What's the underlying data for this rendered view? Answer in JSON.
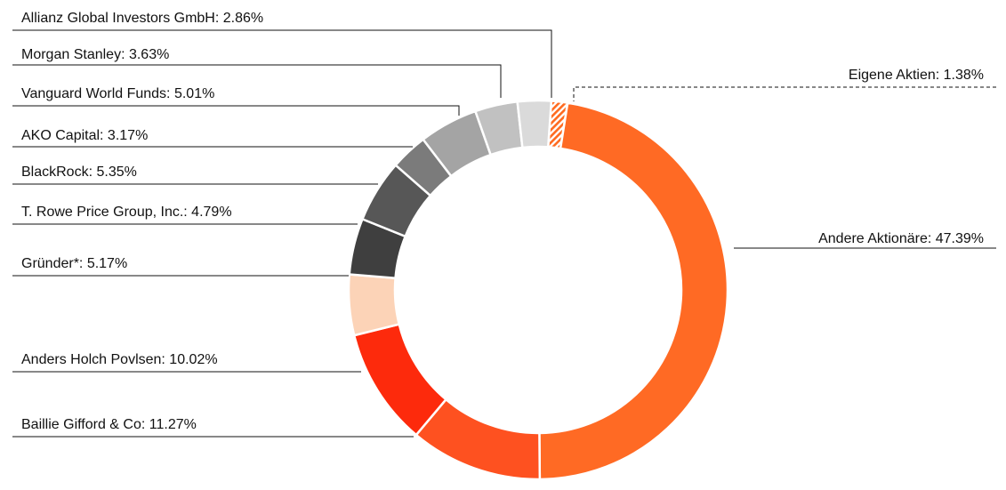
{
  "chart_data": {
    "type": "donut",
    "title": "",
    "slices": [
      {
        "label": "Eigene Aktien: 1.38%",
        "name": "Eigene Aktien",
        "value": 1.38,
        "color": "#ff6a1f",
        "pattern": "hatch"
      },
      {
        "label": "Andere Aktionäre: 47.39%",
        "name": "Andere Aktionäre",
        "value": 47.39,
        "color": "#ff6a24"
      },
      {
        "label": "Baillie Gifford & Co: 11.27%",
        "name": "Baillie Gifford & Co",
        "value": 11.27,
        "color": "#fe5120"
      },
      {
        "label": "Anders Holch Povlsen: 10.02%",
        "name": "Anders Holch Povlsen",
        "value": 10.02,
        "color": "#fd2a0c"
      },
      {
        "label": "Gründer*: 5.17%",
        "name": "Gründer*",
        "value": 5.17,
        "color": "#fcd3b7"
      },
      {
        "label": "T. Rowe Price Group, Inc.: 4.79%",
        "name": "T. Rowe Price Group, Inc.",
        "value": 4.79,
        "color": "#3f3f3f"
      },
      {
        "label": "BlackRock: 5.35%",
        "name": "BlackRock",
        "value": 5.35,
        "color": "#575757"
      },
      {
        "label": "AKO Capital: 3.17%",
        "name": "AKO Capital",
        "value": 3.17,
        "color": "#7b7b7b"
      },
      {
        "label": "Vanguard World Funds: 5.01%",
        "name": "Vanguard World Funds",
        "value": 5.01,
        "color": "#a4a4a4"
      },
      {
        "label": "Morgan Stanley: 3.63%",
        "name": "Morgan Stanley",
        "value": 3.63,
        "color": "#c1c1c1"
      },
      {
        "label": "Allianz Global Investors GmbH: 2.86%",
        "name": "Allianz Global Investors GmbH",
        "value": 2.86,
        "color": "#dadada"
      }
    ]
  }
}
